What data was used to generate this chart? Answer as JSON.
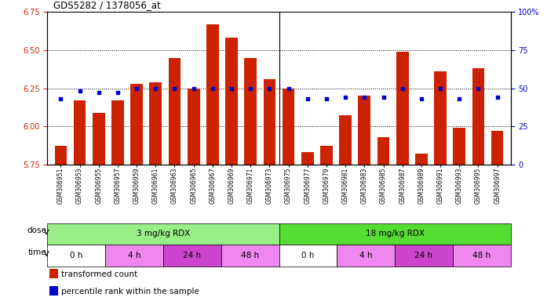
{
  "title": "GDS5282 / 1378056_at",
  "samples": [
    "GSM306951",
    "GSM306953",
    "GSM306955",
    "GSM306957",
    "GSM306959",
    "GSM306961",
    "GSM306963",
    "GSM306965",
    "GSM306967",
    "GSM306969",
    "GSM306971",
    "GSM306973",
    "GSM306975",
    "GSM306977",
    "GSM306979",
    "GSM306981",
    "GSM306983",
    "GSM306985",
    "GSM306987",
    "GSM306989",
    "GSM306991",
    "GSM306993",
    "GSM306995",
    "GSM306997"
  ],
  "bar_values": [
    5.87,
    6.17,
    6.09,
    6.17,
    6.28,
    6.29,
    6.45,
    6.25,
    6.67,
    6.58,
    6.45,
    6.31,
    6.25,
    5.83,
    5.87,
    6.07,
    6.2,
    5.93,
    6.49,
    5.82,
    6.36,
    5.99,
    6.38,
    5.97
  ],
  "percentile_values": [
    43,
    48,
    47,
    47,
    50,
    50,
    50,
    50,
    50,
    50,
    50,
    50,
    50,
    43,
    43,
    44,
    44,
    44,
    50,
    43,
    50,
    43,
    50,
    44
  ],
  "ylim_left": [
    5.75,
    6.75
  ],
  "ylim_right": [
    0,
    100
  ],
  "yticks_left": [
    5.75,
    6.0,
    6.25,
    6.5,
    6.75
  ],
  "yticks_right": [
    0,
    25,
    50,
    75,
    100
  ],
  "bar_color": "#cc2200",
  "dot_color": "#0000cc",
  "baseline": 5.75,
  "grid_yticks": [
    6.0,
    6.25,
    6.5
  ],
  "separator_after": 12,
  "dose_groups": [
    {
      "label": "3 mg/kg RDX",
      "start": 0,
      "end": 12,
      "color": "#99ee88"
    },
    {
      "label": "18 mg/kg RDX",
      "start": 12,
      "end": 24,
      "color": "#55dd33"
    }
  ],
  "time_groups": [
    {
      "label": "0 h",
      "start": 0,
      "end": 3,
      "color": "#ffffff"
    },
    {
      "label": "4 h",
      "start": 3,
      "end": 6,
      "color": "#ee88ee"
    },
    {
      "label": "24 h",
      "start": 6,
      "end": 9,
      "color": "#cc44cc"
    },
    {
      "label": "48 h",
      "start": 9,
      "end": 12,
      "color": "#ee88ee"
    },
    {
      "label": "0 h",
      "start": 12,
      "end": 15,
      "color": "#ffffff"
    },
    {
      "label": "4 h",
      "start": 15,
      "end": 18,
      "color": "#ee88ee"
    },
    {
      "label": "24 h",
      "start": 18,
      "end": 21,
      "color": "#cc44cc"
    },
    {
      "label": "48 h",
      "start": 21,
      "end": 24,
      "color": "#ee88ee"
    }
  ],
  "legend_items": [
    {
      "label": "transformed count",
      "color": "#cc2200"
    },
    {
      "label": "percentile rank within the sample",
      "color": "#0000cc"
    }
  ],
  "dose_label": "dose",
  "time_label": "time"
}
